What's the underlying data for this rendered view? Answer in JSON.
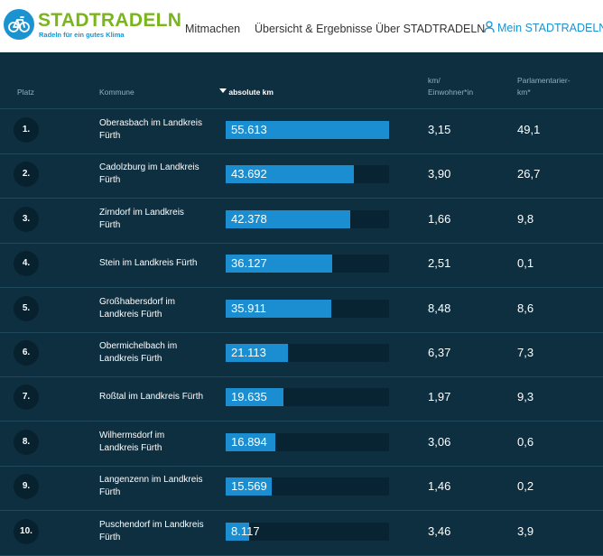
{
  "brand": {
    "title": "STADTRADELN",
    "subtitle": "Radeln für ein gutes Klima",
    "primary_color": "#1a93d0",
    "accent_color": "#7ab51d"
  },
  "nav": {
    "items": [
      "Mitmachen",
      "Übersicht & Ergebnisse",
      "Über STADTRADELN"
    ],
    "account_label": "Mein STADTRADELN"
  },
  "table": {
    "headers": {
      "rank": "Platz",
      "name": "Kommune",
      "km": "absolute km",
      "per_capita": [
        "km/",
        "Einwohner*in"
      ],
      "parl": [
        "Parlamentarier-",
        "km*"
      ]
    },
    "sort": {
      "column": "absolute km",
      "direction": "descending",
      "icon": "sort-down-icon"
    },
    "max_km": 55613,
    "rows": [
      {
        "rank": "1.",
        "name": [
          "Oberasbach im Landkreis",
          "Fürth"
        ],
        "km": "55.613",
        "km_value": 55613,
        "per_capita": "3,15",
        "parl": "49,1"
      },
      {
        "rank": "2.",
        "name": [
          "Cadolzburg im Landkreis",
          "Fürth"
        ],
        "km": "43.692",
        "km_value": 43692,
        "per_capita": "3,90",
        "parl": "26,7"
      },
      {
        "rank": "3.",
        "name": [
          "Zirndorf im Landkreis",
          "Fürth"
        ],
        "km": "42.378",
        "km_value": 42378,
        "per_capita": "1,66",
        "parl": "9,8"
      },
      {
        "rank": "4.",
        "name": [
          "Stein im Landkreis Fürth"
        ],
        "km": "36.127",
        "km_value": 36127,
        "per_capita": "2,51",
        "parl": "0,1"
      },
      {
        "rank": "5.",
        "name": [
          "Großhabersdorf im",
          "Landkreis Fürth"
        ],
        "km": "35.911",
        "km_value": 35911,
        "per_capita": "8,48",
        "parl": "8,6"
      },
      {
        "rank": "6.",
        "name": [
          "Obermichelbach im",
          "Landkreis Fürth"
        ],
        "km": "21.113",
        "km_value": 21113,
        "per_capita": "6,37",
        "parl": "7,3"
      },
      {
        "rank": "7.",
        "name": [
          "Roßtal im Landkreis Fürth"
        ],
        "km": "19.635",
        "km_value": 19635,
        "per_capita": "1,97",
        "parl": "9,3"
      },
      {
        "rank": "8.",
        "name": [
          "Wilhermsdorf im",
          "Landkreis Fürth"
        ],
        "km": "16.894",
        "km_value": 16894,
        "per_capita": "3,06",
        "parl": "0,6"
      },
      {
        "rank": "9.",
        "name": [
          "Langenzenn im Landkreis",
          "Fürth"
        ],
        "km": "15.569",
        "km_value": 15569,
        "per_capita": "1,46",
        "parl": "0,2"
      },
      {
        "rank": "10.",
        "name": [
          "Puschendorf im Landkreis",
          "Fürth"
        ],
        "km": "8.117",
        "km_value": 8117,
        "per_capita": "3,46",
        "parl": "3,9"
      }
    ]
  }
}
